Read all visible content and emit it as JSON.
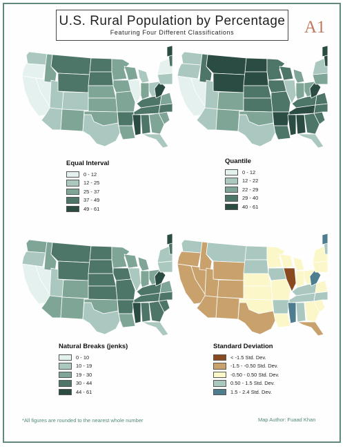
{
  "title": "U.S. Rural Population by Percentage",
  "subtitle": "Featuring Four Different Classifications",
  "badge": "A1",
  "maps": [
    {
      "id": "equal-interval",
      "legend_title": "Equal Interval",
      "classes": [
        {
          "label": "0 - 12",
          "color": "#e4f1ee"
        },
        {
          "label": "12 - 25",
          "color": "#aac8bf"
        },
        {
          "label": "25 - 37",
          "color": "#7fa596"
        },
        {
          "label": "37 - 49",
          "color": "#4d7568"
        },
        {
          "label": "49 - 61",
          "color": "#2b4c42"
        }
      ],
      "outline_color": "#ffffff"
    },
    {
      "id": "quantile",
      "legend_title": "Quantile",
      "classes": [
        {
          "label": "0 - 12",
          "color": "#e4f1ee"
        },
        {
          "label": "12 - 22",
          "color": "#aac8bf"
        },
        {
          "label": "22 - 29",
          "color": "#7fa596"
        },
        {
          "label": "29 - 40",
          "color": "#4d7568"
        },
        {
          "label": "40 - 61",
          "color": "#2b4c42"
        }
      ],
      "outline_color": "#ffffff"
    },
    {
      "id": "natural-breaks",
      "legend_title": "Natural Breaks (jenks)",
      "classes": [
        {
          "label": "0 - 10",
          "color": "#e4f1ee"
        },
        {
          "label": "10 - 19",
          "color": "#aac8bf"
        },
        {
          "label": "19 - 30",
          "color": "#7fa596"
        },
        {
          "label": "30 - 44",
          "color": "#4d7568"
        },
        {
          "label": "44 - 61",
          "color": "#2b4c42"
        }
      ],
      "outline_color": "#ffffff"
    },
    {
      "id": "standard-deviation",
      "legend_title": "Standard Deviation",
      "classes": [
        {
          "label": "< -1.5 Std. Dev.",
          "color": "#8a4a1f"
        },
        {
          "label": "-1.5 - -0.50 Std. Dev.",
          "color": "#c9a16c"
        },
        {
          "label": "-0.50 - 0.50 Std. Dev.",
          "color": "#fbf7c8"
        },
        {
          "label": "0.50 - 1.5 Std. Dev.",
          "color": "#aac8bf"
        },
        {
          "label": "1.5 - 2.4 Std. Dev.",
          "color": "#4d7d8f"
        }
      ],
      "outline_color": "#ffffff"
    }
  ],
  "footnote": "*All figures are rounded to the nearest whole number",
  "author": "Map Author: Fuaad Khan"
}
